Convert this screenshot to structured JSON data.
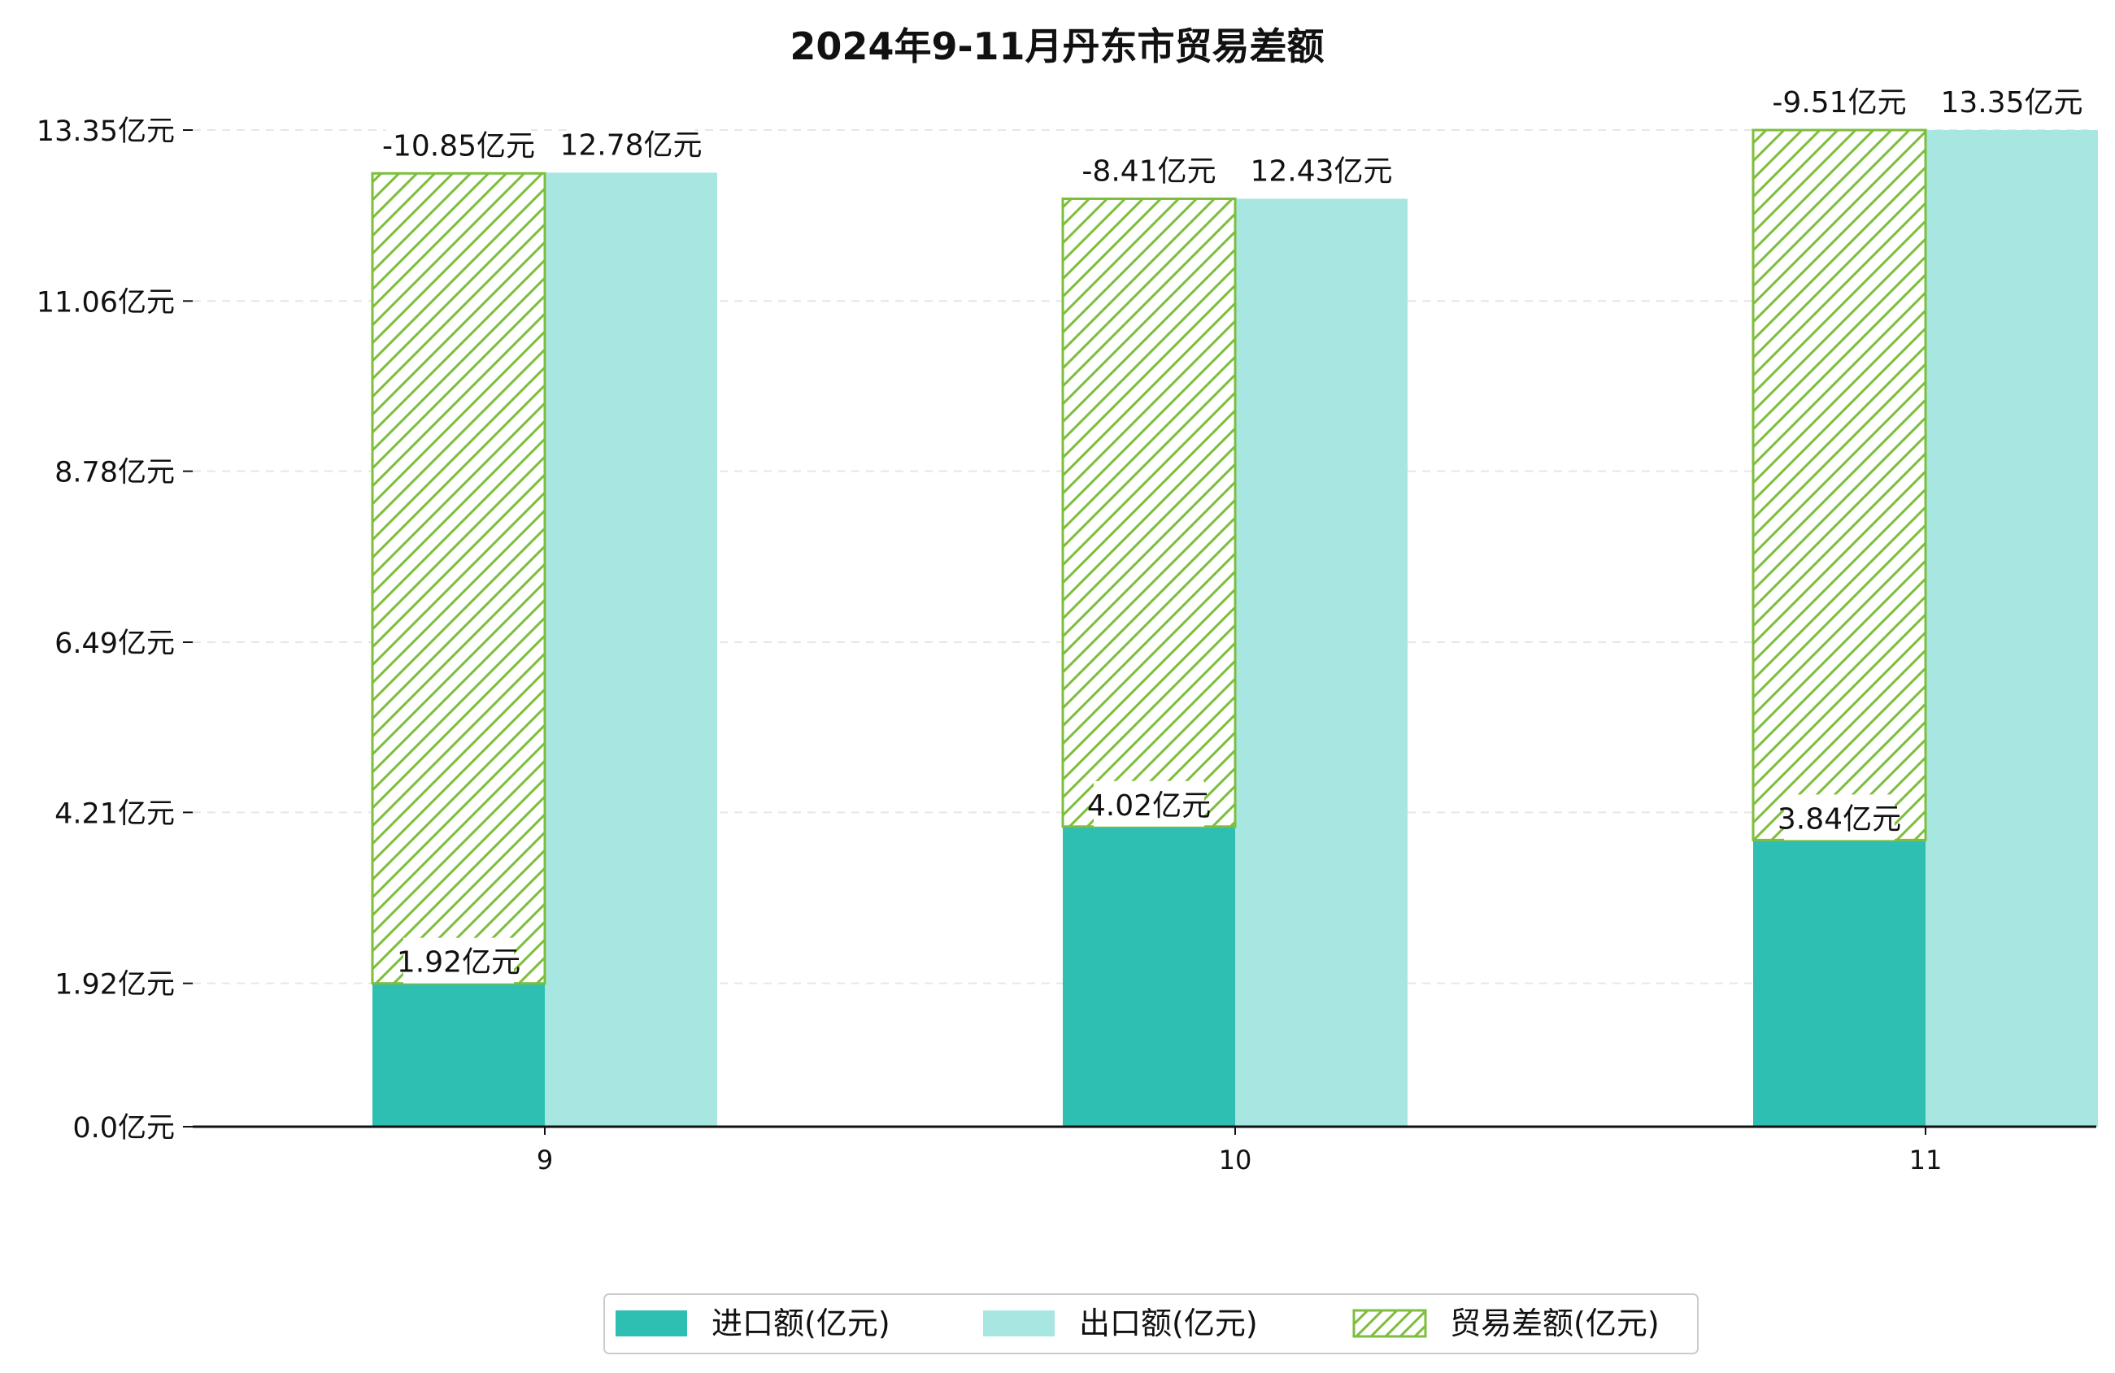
{
  "chart_data": {
    "type": "bar",
    "title": "2024年9-11月丹东市贸易差额",
    "xlabel": "",
    "ylabel": "",
    "categories": [
      "9",
      "10",
      "11"
    ],
    "series": [
      {
        "name": "进口额(亿元)",
        "values": [
          1.92,
          4.02,
          3.84
        ],
        "color": "#2ebfb2",
        "labels": [
          "1.92亿元",
          "4.02亿元",
          "3.84亿元"
        ]
      },
      {
        "name": "出口额(亿元)",
        "values": [
          12.78,
          12.43,
          13.35
        ],
        "color": "#a8e6e1",
        "labels": [
          "12.78亿元",
          "12.43亿元",
          "13.35亿元"
        ]
      },
      {
        "name": "贸易差额(亿元)",
        "values": [
          -10.85,
          -8.41,
          -9.51
        ],
        "color": "#7dbe3c",
        "pattern": "hatch",
        "labels": [
          "-10.85亿元",
          "-8.41亿元",
          "-9.51亿元"
        ]
      }
    ],
    "yticks": [
      "0.0亿元",
      "1.92亿元",
      "4.21亿元",
      "6.49亿元",
      "8.78亿元",
      "11.06亿元",
      "13.35亿元"
    ],
    "ytick_values": [
      0.0,
      1.92,
      4.21,
      6.49,
      8.78,
      11.06,
      13.35
    ],
    "ylim": [
      0,
      13.35
    ],
    "grid": true,
    "legend_position": "bottom-center"
  }
}
